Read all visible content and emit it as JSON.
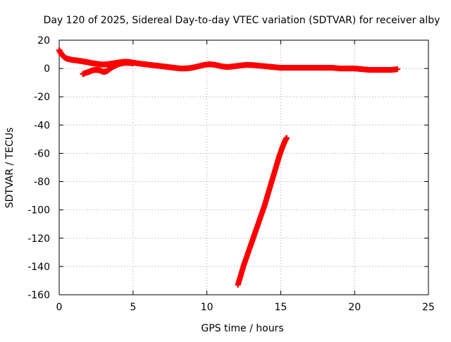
{
  "chart_data": {
    "type": "scatter",
    "title": "Day 120 of 2025, Sidereal Day-to-day VTEC variation (SDTVAR) for receiver alby",
    "xlabel": "GPS time / hours",
    "ylabel": "SDTVAR / TECUs",
    "xlim": [
      0,
      25
    ],
    "ylim": [
      -160,
      20
    ],
    "xticks": [
      "0",
      "5",
      "10",
      "15",
      "20",
      "25"
    ],
    "yticks": [
      "-160",
      "-140",
      "-120",
      "-100",
      "-80",
      "-60",
      "-40",
      "-20",
      "0",
      "20"
    ],
    "grid": true,
    "marker": "+",
    "series_color": "#ff0000",
    "series": [
      {
        "segment": "main-upper",
        "x": [
          0.0,
          0.1,
          0.2,
          0.35,
          0.5,
          0.7,
          0.9,
          1.1,
          1.3,
          1.5,
          1.7,
          1.9,
          2.1,
          2.4,
          2.7,
          3.0,
          3.3,
          3.6,
          3.9,
          4.2,
          4.5,
          4.8,
          5.1,
          5.4,
          5.8,
          6.2,
          6.6,
          7.0,
          7.4,
          7.8,
          8.2,
          8.6,
          9.0,
          9.4,
          9.8,
          10.2,
          10.6,
          11.0,
          11.4,
          11.8,
          12.2,
          12.6,
          13.0,
          13.5,
          14.0,
          14.5,
          15.0,
          15.5,
          16.0,
          16.5,
          17.0,
          17.5,
          18.0,
          18.5,
          19.0,
          19.5,
          20.0,
          20.5,
          21.0,
          21.5,
          22.0,
          22.5,
          22.9
        ],
        "y": [
          13,
          11,
          9.5,
          8,
          7,
          6.5,
          6,
          5.8,
          5.5,
          5.2,
          4.8,
          4.5,
          4,
          3.5,
          3,
          2.8,
          3,
          3.5,
          4,
          4.5,
          4.8,
          4.5,
          4,
          3.5,
          3,
          2.5,
          2,
          1.5,
          1,
          0.5,
          0,
          0,
          0.5,
          1.5,
          2.5,
          3,
          2.5,
          1.5,
          1,
          1.5,
          2,
          2.5,
          2.5,
          2,
          1.5,
          1,
          0.5,
          0.5,
          0.5,
          0.5,
          0.5,
          0.5,
          0.5,
          0.5,
          0,
          0,
          0,
          -0.5,
          -1,
          -1,
          -1,
          -1,
          -0.5
        ]
      },
      {
        "segment": "main-lower",
        "x": [
          1.6,
          1.8,
          2.0,
          2.2,
          2.4,
          2.6,
          2.8,
          3.0,
          3.2,
          3.4,
          3.6,
          3.8,
          4.0,
          4.2,
          4.4,
          4.6,
          4.8,
          5.0
        ],
        "y": [
          -4,
          -3,
          -2.5,
          -1.5,
          -1,
          -1,
          -1.5,
          -2.5,
          -2,
          -0.5,
          1,
          2,
          3,
          3.5,
          4,
          4,
          4,
          3.5
        ]
      },
      {
        "segment": "descending",
        "x": [
          12.1,
          12.3,
          12.5,
          12.7,
          12.9,
          13.1,
          13.3,
          13.5,
          13.7,
          13.9,
          14.1,
          14.3,
          14.5,
          14.7,
          14.9,
          15.1,
          15.3,
          15.4
        ],
        "y": [
          -153,
          -146,
          -139,
          -133,
          -127,
          -121,
          -115,
          -109,
          -103,
          -97,
          -90,
          -83,
          -76,
          -69,
          -62,
          -56,
          -51,
          -49
        ]
      }
    ]
  }
}
